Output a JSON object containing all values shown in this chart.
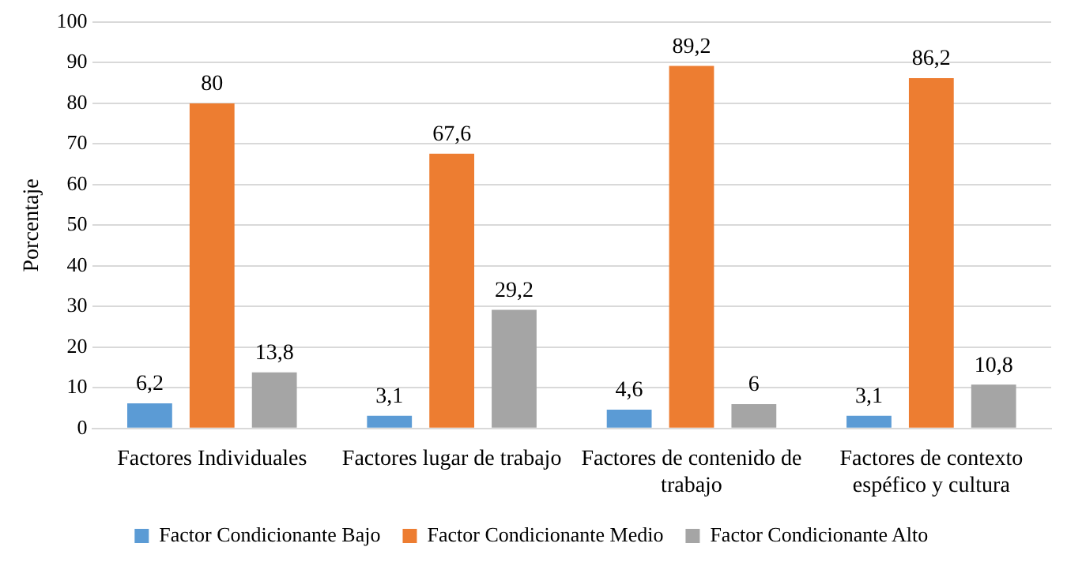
{
  "chart_data": {
    "type": "bar",
    "ylabel": "Porcentaje",
    "categories": [
      "Factores Individuales",
      "Factores lugar de trabajo",
      "Factores de contenido de trabajo",
      "Factores de contexto espéfico y cultura"
    ],
    "series": [
      {
        "name": "Factor Condicionante Bajo",
        "color": "#5b9bd5",
        "values": [
          6.2,
          3.1,
          4.6,
          3.1
        ],
        "value_labels": [
          "6,2",
          "3,1",
          "4,6",
          "3,1"
        ]
      },
      {
        "name": "Factor Condicionante Medio",
        "color": "#ed7d31",
        "values": [
          80,
          67.6,
          89.2,
          86.2
        ],
        "value_labels": [
          "80",
          "67,6",
          "89,2",
          "86,2"
        ]
      },
      {
        "name": "Factor Condicionante Alto",
        "color": "#a5a5a5",
        "values": [
          13.8,
          29.2,
          6,
          10.8
        ],
        "value_labels": [
          "13,8",
          "29,2",
          "6",
          "10,8"
        ]
      }
    ],
    "ylim": [
      0,
      100
    ],
    "yticks": [
      0,
      10,
      20,
      30,
      40,
      50,
      60,
      70,
      80,
      90,
      100
    ],
    "grid": "y",
    "legend": "bottom"
  }
}
